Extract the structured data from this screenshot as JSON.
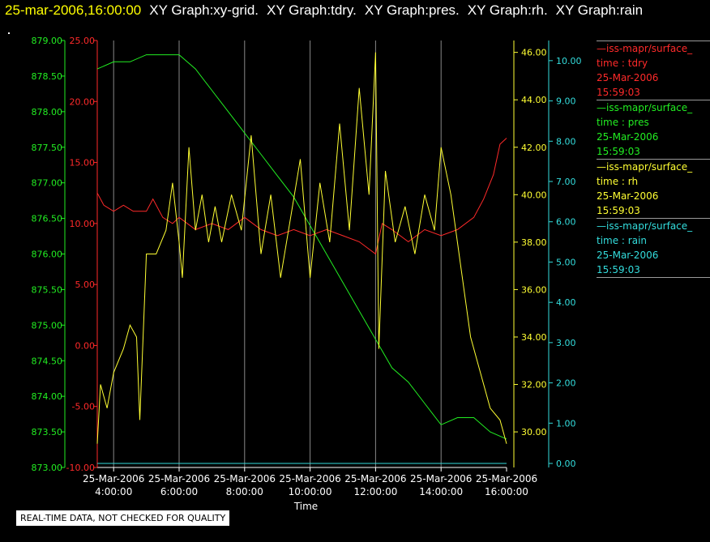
{
  "header": {
    "timestamp": "25-mar-2006,16:00:00",
    "graph_titles": [
      "XY Graph:xy-grid.",
      "XY Graph:tdry.",
      "XY Graph:pres.",
      "XY Graph:rh.",
      "XY Graph:rain"
    ]
  },
  "footer": {
    "note": "REAL-TIME DATA, NOT CHECKED FOR QUALITY"
  },
  "colors": {
    "tdry": "#ff2a2a",
    "pres": "#22ee22",
    "rh": "#ffff33",
    "rain": "#33dddd",
    "grid": "#888888",
    "axis": "#ffffff"
  },
  "legend": [
    {
      "series": "tdry",
      "name": "—iss-mapr/surface_",
      "axis_line": "time : tdry",
      "date": "25-Mar-2006",
      "time": "15:59:03"
    },
    {
      "series": "pres",
      "name": "—iss-mapr/surface_",
      "axis_line": "time : pres",
      "date": "25-Mar-2006",
      "time": "15:59:03"
    },
    {
      "series": "rh",
      "name": "—iss-mapr/surface_",
      "axis_line": "time : rh",
      "date": "25-Mar-2006",
      "time": "15:59:03"
    },
    {
      "series": "rain",
      "name": "—iss-mapr/surface_",
      "axis_line": "time : rain",
      "date": "25-Mar-2006",
      "time": "15:59:03"
    }
  ],
  "chart_data": {
    "type": "line",
    "title": "",
    "xlabel": "Time",
    "x_range_hours": [
      3.5,
      16.0
    ],
    "x_ticks": [
      {
        "t": 4,
        "date": "25-Mar-2006",
        "time": "4:00:00"
      },
      {
        "t": 6,
        "date": "25-Mar-2006",
        "time": "6:00:00"
      },
      {
        "t": 8,
        "date": "25-Mar-2006",
        "time": "8:00:00"
      },
      {
        "t": 10,
        "date": "25-Mar-2006",
        "time": "10:00:00"
      },
      {
        "t": 12,
        "date": "25-Mar-2006",
        "time": "12:00:00"
      },
      {
        "t": 14,
        "date": "25-Mar-2006",
        "time": "14:00:00"
      },
      {
        "t": 16,
        "date": "25-Mar-2006",
        "time": "16:00:00"
      }
    ],
    "grid": true,
    "axes": {
      "pres": {
        "ylim": [
          873.0,
          879.0
        ],
        "ticks": [
          "873.00",
          "873.50",
          "874.00",
          "874.50",
          "875.00",
          "875.50",
          "876.00",
          "876.50",
          "877.00",
          "877.50",
          "878.00",
          "878.50",
          "879.00"
        ]
      },
      "tdry": {
        "ylim": [
          -10.0,
          25.0
        ],
        "ticks": [
          "-10.00",
          "-5.00",
          "0.00",
          "5.00",
          "10.00",
          "15.00",
          "20.00",
          "25.00"
        ]
      },
      "rh": {
        "ylim": [
          28.5,
          46.5
        ],
        "ticks": [
          "30.00",
          "32.00",
          "34.00",
          "36.00",
          "38.00",
          "40.00",
          "42.00",
          "44.00",
          "46.00"
        ]
      },
      "rain": {
        "ylim": [
          -0.1,
          10.5
        ],
        "ticks": [
          "0.00",
          "1.00",
          "2.00",
          "3.00",
          "4.00",
          "5.00",
          "6.00",
          "7.00",
          "8.00",
          "9.00",
          "10.00"
        ]
      }
    },
    "series": [
      {
        "name": "tdry",
        "axis": "tdry",
        "x": [
          3.5,
          3.7,
          4.0,
          4.3,
          4.6,
          5.0,
          5.2,
          5.5,
          5.8,
          6.0,
          6.5,
          7.0,
          7.5,
          8.0,
          8.5,
          9.0,
          9.5,
          10.0,
          10.5,
          11.0,
          11.5,
          12.0,
          12.2,
          12.5,
          13.0,
          13.5,
          14.0,
          14.5,
          15.0,
          15.3,
          15.6,
          15.8,
          16.0
        ],
        "y": [
          12.5,
          11.5,
          11.0,
          11.5,
          11.0,
          11.0,
          12.0,
          10.5,
          10.0,
          10.5,
          9.5,
          10.0,
          9.5,
          10.5,
          9.5,
          9.0,
          9.5,
          9.0,
          9.5,
          9.0,
          8.5,
          7.5,
          10.0,
          9.5,
          8.5,
          9.5,
          9.0,
          9.5,
          10.5,
          12.0,
          14.0,
          16.5,
          17.0
        ]
      },
      {
        "name": "pres",
        "axis": "pres",
        "x": [
          3.5,
          4.0,
          4.5,
          5.0,
          5.5,
          6.0,
          6.5,
          7.0,
          7.5,
          8.0,
          8.5,
          9.0,
          9.5,
          10.0,
          10.5,
          11.0,
          11.5,
          12.0,
          12.5,
          13.0,
          13.5,
          14.0,
          14.5,
          15.0,
          15.5,
          16.0
        ],
        "y": [
          878.6,
          878.7,
          878.7,
          878.8,
          878.8,
          878.8,
          878.6,
          878.3,
          878.0,
          877.7,
          877.4,
          877.1,
          876.8,
          876.4,
          876.0,
          875.6,
          875.2,
          874.8,
          874.4,
          874.2,
          873.9,
          873.6,
          873.7,
          873.7,
          873.5,
          873.4
        ]
      },
      {
        "name": "rh",
        "axis": "rh",
        "x": [
          3.5,
          3.6,
          3.8,
          4.0,
          4.3,
          4.5,
          4.7,
          4.8,
          5.0,
          5.3,
          5.6,
          5.8,
          6.0,
          6.1,
          6.3,
          6.5,
          6.7,
          6.9,
          7.1,
          7.3,
          7.6,
          7.9,
          8.2,
          8.5,
          8.8,
          9.1,
          9.4,
          9.7,
          10.0,
          10.3,
          10.6,
          10.9,
          11.2,
          11.5,
          11.8,
          12.0,
          12.1,
          12.3,
          12.6,
          12.9,
          13.2,
          13.5,
          13.8,
          14.0,
          14.3,
          14.6,
          14.9,
          15.2,
          15.5,
          15.8,
          16.0
        ],
        "y": [
          29.5,
          32.0,
          31.0,
          32.5,
          33.5,
          34.5,
          34.0,
          30.5,
          37.5,
          37.5,
          38.5,
          40.5,
          38.0,
          36.5,
          42.0,
          38.5,
          40.0,
          38.0,
          39.5,
          38.0,
          40.0,
          38.5,
          42.5,
          37.5,
          40.0,
          36.5,
          39.0,
          41.5,
          36.5,
          40.5,
          38.0,
          43.0,
          38.5,
          44.5,
          40.0,
          46.0,
          33.5,
          41.0,
          38.0,
          39.5,
          37.5,
          40.0,
          38.5,
          42.0,
          40.0,
          37.0,
          34.0,
          32.5,
          31.0,
          30.5,
          29.5
        ]
      },
      {
        "name": "rain",
        "axis": "rain",
        "x": [
          3.5,
          16.0
        ],
        "y": [
          0.0,
          0.0
        ]
      }
    ]
  }
}
